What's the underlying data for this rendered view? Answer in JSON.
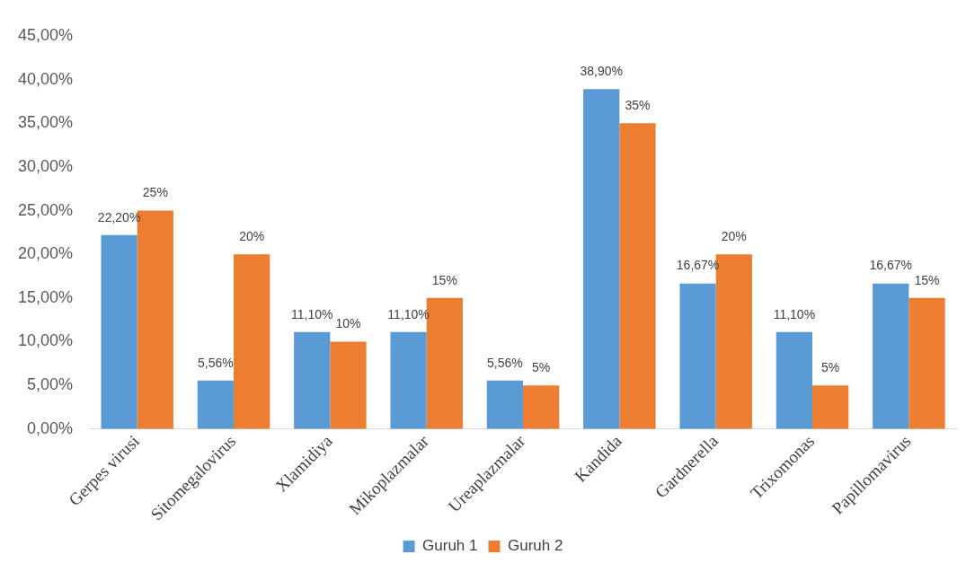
{
  "chart_data": {
    "type": "bar",
    "categories": [
      "Gerpes virusi",
      "Sitomegalovirus",
      "Xlamidiya",
      "Mikoplazmalar",
      "Ureaplazmalar",
      "Kandida",
      "Gardnerella",
      "Trixomonas",
      "Papillomavirus"
    ],
    "series": [
      {
        "name": "Guruh 1",
        "color": "#5b9bd5",
        "values": [
          22.2,
          5.56,
          11.1,
          11.1,
          5.56,
          38.9,
          16.67,
          11.1,
          16.67
        ],
        "value_labels": [
          "22,20%",
          "5,56%",
          "11,10%",
          "11,10%",
          "5,56%",
          "38,90%",
          "16,67%",
          "11,10%",
          "16,67%"
        ]
      },
      {
        "name": "Guruh 2",
        "color": "#ed7d31",
        "values": [
          25,
          20,
          10,
          15,
          5,
          35,
          20,
          5,
          15
        ],
        "value_labels": [
          "25%",
          "20%",
          "10%",
          "15%",
          "5%",
          "35%",
          "20%",
          "5%",
          "15%"
        ]
      }
    ],
    "ylim": [
      0,
      45
    ],
    "yticks": [
      {
        "value": 0,
        "label": "0,00%"
      },
      {
        "value": 5,
        "label": "5,00%"
      },
      {
        "value": 10,
        "label": "10,00%"
      },
      {
        "value": 15,
        "label": "15,00%"
      },
      {
        "value": 20,
        "label": "20,00%"
      },
      {
        "value": 25,
        "label": "25,00%"
      },
      {
        "value": 30,
        "label": "30,00%"
      },
      {
        "value": 35,
        "label": "35,00%"
      },
      {
        "value": 40,
        "label": "40,00%"
      },
      {
        "value": 45,
        "label": "45,00%"
      }
    ],
    "grid": false,
    "legend": "bottom"
  }
}
